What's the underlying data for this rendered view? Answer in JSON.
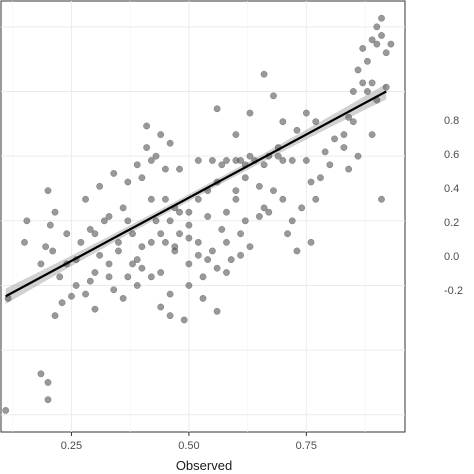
{
  "chart_data": [
    {
      "type": "scatter",
      "title": "",
      "xlabel": "Observed",
      "ylabel": "",
      "xlim": [
        0.1,
        0.96
      ],
      "ylim": [
        0.06,
        1.06
      ],
      "x_ticks": [
        "0.25",
        "0.50",
        "0.75"
      ],
      "x_tick_values": [
        0.25,
        0.5,
        0.75
      ],
      "y_grid_values": [
        0.1,
        0.25,
        0.4,
        0.55,
        0.7,
        0.85,
        1.0
      ],
      "grid": true,
      "point_color": "#555555",
      "line_color": "#000000",
      "band_color": "#b3b3b3",
      "fit": {
        "x": [
          0.11,
          0.92
        ],
        "y": [
          0.375,
          0.85
        ],
        "band_halfwidth_ends": 0.018,
        "band_halfwidth_mid": 0.008
      },
      "points": [
        [
          0.11,
          0.11
        ],
        [
          0.185,
          0.195
        ],
        [
          0.2,
          0.175
        ],
        [
          0.2,
          0.135
        ],
        [
          0.115,
          0.37
        ],
        [
          0.15,
          0.5
        ],
        [
          0.155,
          0.55
        ],
        [
          0.185,
          0.45
        ],
        [
          0.195,
          0.49
        ],
        [
          0.2,
          0.62
        ],
        [
          0.205,
          0.54
        ],
        [
          0.215,
          0.57
        ],
        [
          0.21,
          0.48
        ],
        [
          0.215,
          0.33
        ],
        [
          0.225,
          0.42
        ],
        [
          0.24,
          0.45
        ],
        [
          0.26,
          0.46
        ],
        [
          0.27,
          0.5
        ],
        [
          0.3,
          0.43
        ],
        [
          0.31,
          0.47
        ],
        [
          0.29,
          0.41
        ],
        [
          0.33,
          0.45
        ],
        [
          0.26,
          0.4
        ],
        [
          0.25,
          0.375
        ],
        [
          0.28,
          0.38
        ],
        [
          0.3,
          0.52
        ],
        [
          0.32,
          0.55
        ],
        [
          0.28,
          0.6
        ],
        [
          0.35,
          0.5
        ],
        [
          0.35,
          0.48
        ],
        [
          0.33,
          0.42
        ],
        [
          0.36,
          0.37
        ],
        [
          0.34,
          0.39
        ],
        [
          0.3,
          0.345
        ],
        [
          0.37,
          0.55
        ],
        [
          0.38,
          0.52
        ],
        [
          0.4,
          0.49
        ],
        [
          0.38,
          0.45
        ],
        [
          0.39,
          0.46
        ],
        [
          0.4,
          0.44
        ],
        [
          0.42,
          0.5
        ],
        [
          0.43,
          0.55
        ],
        [
          0.42,
          0.6
        ],
        [
          0.4,
          0.65
        ],
        [
          0.41,
          0.72
        ],
        [
          0.43,
          0.7
        ],
        [
          0.45,
          0.67
        ],
        [
          0.46,
          0.73
        ],
        [
          0.44,
          0.75
        ],
        [
          0.41,
          0.77
        ],
        [
          0.45,
          0.6
        ],
        [
          0.47,
          0.58
        ],
        [
          0.48,
          0.57
        ],
        [
          0.46,
          0.55
        ],
        [
          0.44,
          0.52
        ],
        [
          0.45,
          0.5
        ],
        [
          0.47,
          0.48
        ],
        [
          0.44,
          0.43
        ],
        [
          0.46,
          0.38
        ],
        [
          0.42,
          0.42
        ],
        [
          0.5,
          0.51
        ],
        [
          0.52,
          0.5
        ],
        [
          0.5,
          0.57
        ],
        [
          0.52,
          0.6
        ],
        [
          0.54,
          0.62
        ],
        [
          0.56,
          0.64
        ],
        [
          0.5,
          0.45
        ],
        [
          0.53,
          0.42
        ],
        [
          0.55,
          0.48
        ],
        [
          0.58,
          0.5
        ],
        [
          0.57,
          0.53
        ],
        [
          0.6,
          0.6
        ],
        [
          0.62,
          0.55
        ],
        [
          0.57,
          0.68
        ],
        [
          0.61,
          0.52
        ],
        [
          0.59,
          0.46
        ],
        [
          0.61,
          0.47
        ],
        [
          0.63,
          0.49
        ],
        [
          0.65,
          0.56
        ],
        [
          0.66,
          0.58
        ],
        [
          0.68,
          0.62
        ],
        [
          0.67,
          0.57
        ],
        [
          0.7,
          0.6
        ],
        [
          0.72,
          0.55
        ],
        [
          0.71,
          0.52
        ],
        [
          0.74,
          0.58
        ],
        [
          0.73,
          0.48
        ],
        [
          0.76,
          0.5
        ],
        [
          0.77,
          0.6
        ],
        [
          0.76,
          0.64
        ],
        [
          0.78,
          0.65
        ],
        [
          0.8,
          0.68
        ],
        [
          0.79,
          0.71
        ],
        [
          0.81,
          0.74
        ],
        [
          0.77,
          0.78
        ],
        [
          0.75,
          0.8
        ],
        [
          0.73,
          0.76
        ],
        [
          0.7,
          0.78
        ],
        [
          0.68,
          0.84
        ],
        [
          0.66,
          0.89
        ],
        [
          0.67,
          0.7
        ],
        [
          0.69,
          0.72
        ],
        [
          0.63,
          0.8
        ],
        [
          0.6,
          0.75
        ],
        [
          0.56,
          0.81
        ],
        [
          0.48,
          0.67
        ],
        [
          0.42,
          0.69
        ],
        [
          0.52,
          0.69
        ],
        [
          0.55,
          0.69
        ],
        [
          0.58,
          0.69
        ],
        [
          0.61,
          0.69
        ],
        [
          0.64,
          0.69
        ],
        [
          0.72,
          0.69
        ],
        [
          0.75,
          0.69
        ],
        [
          0.83,
          0.75
        ],
        [
          0.84,
          0.79
        ],
        [
          0.85,
          0.85
        ],
        [
          0.87,
          0.87
        ],
        [
          0.86,
          0.9
        ],
        [
          0.88,
          0.92
        ],
        [
          0.87,
          0.95
        ],
        [
          0.89,
          0.97
        ],
        [
          0.9,
          1.0
        ],
        [
          0.91,
          0.98
        ],
        [
          0.9,
          0.96
        ],
        [
          0.92,
          0.94
        ],
        [
          0.93,
          0.96
        ],
        [
          0.91,
          1.02
        ],
        [
          0.88,
          0.85
        ],
        [
          0.9,
          0.83
        ],
        [
          0.89,
          0.87
        ],
        [
          0.92,
          0.86
        ],
        [
          0.91,
          0.6
        ],
        [
          0.86,
          0.7
        ],
        [
          0.84,
          0.67
        ],
        [
          0.83,
          0.72
        ],
        [
          0.85,
          0.78
        ],
        [
          0.89,
          0.75
        ],
        [
          0.36,
          0.58
        ],
        [
          0.33,
          0.56
        ],
        [
          0.31,
          0.63
        ],
        [
          0.37,
          0.64
        ],
        [
          0.39,
          0.68
        ],
        [
          0.34,
          0.66
        ],
        [
          0.29,
          0.53
        ],
        [
          0.24,
          0.52
        ],
        [
          0.23,
          0.36
        ],
        [
          0.5,
          0.4
        ],
        [
          0.53,
          0.37
        ],
        [
          0.56,
          0.34
        ],
        [
          0.49,
          0.32
        ],
        [
          0.46,
          0.33
        ],
        [
          0.44,
          0.35
        ],
        [
          0.39,
          0.4
        ],
        [
          0.37,
          0.42
        ],
        [
          0.54,
          0.56
        ],
        [
          0.58,
          0.57
        ],
        [
          0.65,
          0.63
        ],
        [
          0.6,
          0.62
        ],
        [
          0.62,
          0.65
        ],
        [
          0.6,
          0.69
        ],
        [
          0.62,
          0.68
        ],
        [
          0.63,
          0.7
        ],
        [
          0.66,
          0.68
        ],
        [
          0.69,
          0.7
        ],
        [
          0.7,
          0.69
        ],
        [
          0.52,
          0.47
        ],
        [
          0.54,
          0.46
        ],
        [
          0.56,
          0.44
        ],
        [
          0.58,
          0.43
        ],
        [
          0.5,
          0.54
        ],
        [
          0.48,
          0.52
        ],
        [
          0.47,
          0.49
        ]
      ]
    },
    {
      "type": "scatter",
      "title": "",
      "partial": true,
      "y_ticks": [
        "0.8",
        "0.6",
        "0.4",
        "0.2",
        "0.0",
        "-0.2"
      ]
    }
  ]
}
